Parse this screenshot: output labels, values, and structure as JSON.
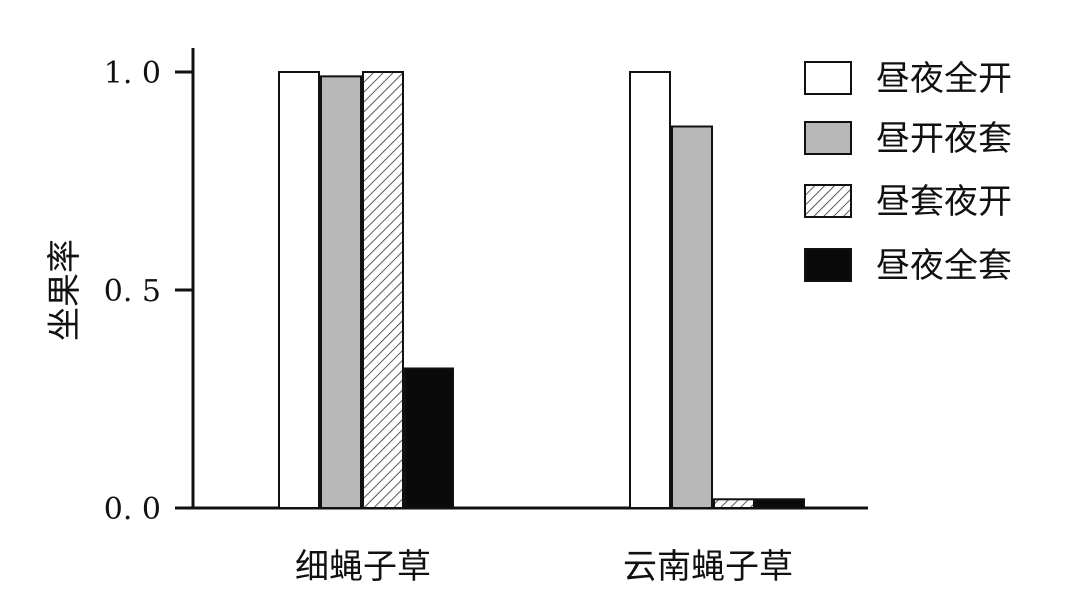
{
  "chart_data": {
    "type": "bar",
    "title": "",
    "xlabel": "",
    "ylabel": "坐果率",
    "ylim": [
      0,
      1.0
    ],
    "yticks": [
      "0. 0",
      "0. 5",
      "1. 0"
    ],
    "ytick_values": [
      0,
      0.5,
      1.0
    ],
    "categories": [
      "细蝇子草",
      "云南蝇子草"
    ],
    "series": [
      {
        "name": "昼夜全开",
        "values": [
          1.0,
          1.0
        ],
        "style": "white"
      },
      {
        "name": "昼开夜套",
        "values": [
          0.99,
          0.875
        ],
        "style": "gray"
      },
      {
        "name": "昼套夜开",
        "values": [
          1.0,
          0.02
        ],
        "style": "hatch"
      },
      {
        "name": "昼夜全套",
        "values": [
          0.32,
          0.02
        ],
        "style": "black"
      }
    ],
    "legend_position": "top-right",
    "grid": false
  },
  "colors": {
    "gray": "#b8b8b8",
    "black": "#0a0a0a",
    "white": "#ffffff",
    "stroke": "#111111"
  }
}
